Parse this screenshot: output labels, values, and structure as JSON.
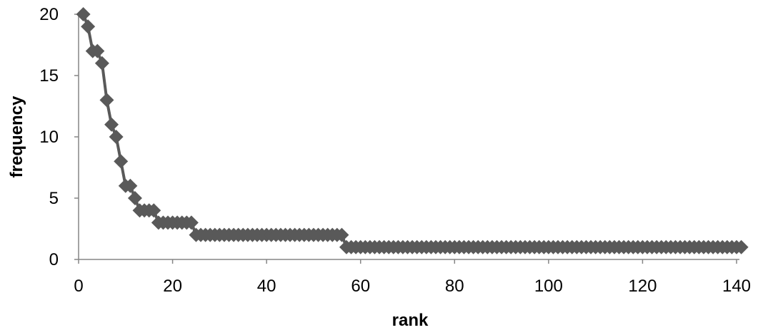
{
  "chart_data": {
    "type": "line",
    "title": "",
    "xlabel": "rank",
    "ylabel": "frequency",
    "xlim": [
      0,
      140
    ],
    "ylim": [
      0,
      20
    ],
    "xticks": [
      "0",
      "20",
      "40",
      "60",
      "80",
      "100",
      "120",
      "140"
    ],
    "yticks": [
      "0",
      "5",
      "10",
      "15",
      "20"
    ],
    "grid": false,
    "legend": "none",
    "marker": "diamond",
    "color": "#595959",
    "series": [
      {
        "values": [
          [
            1,
            20
          ],
          [
            2,
            19
          ],
          [
            3,
            17
          ],
          [
            4,
            17
          ],
          [
            5,
            16
          ],
          [
            6,
            13
          ],
          [
            7,
            11
          ],
          [
            8,
            10
          ],
          [
            9,
            8
          ],
          [
            10,
            6
          ],
          [
            11,
            6
          ],
          [
            12,
            5
          ],
          [
            13,
            4
          ],
          [
            14,
            4
          ],
          [
            15,
            4
          ],
          [
            16,
            4
          ],
          [
            17,
            3
          ],
          [
            18,
            3
          ],
          [
            19,
            3
          ],
          [
            20,
            3
          ],
          [
            21,
            3
          ],
          [
            22,
            3
          ],
          [
            23,
            3
          ],
          [
            24,
            3
          ],
          [
            25,
            2
          ],
          [
            26,
            2
          ],
          [
            27,
            2
          ],
          [
            28,
            2
          ],
          [
            29,
            2
          ],
          [
            30,
            2
          ],
          [
            31,
            2
          ],
          [
            32,
            2
          ],
          [
            33,
            2
          ],
          [
            34,
            2
          ],
          [
            35,
            2
          ],
          [
            36,
            2
          ],
          [
            37,
            2
          ],
          [
            38,
            2
          ],
          [
            39,
            2
          ],
          [
            40,
            2
          ],
          [
            41,
            2
          ],
          [
            42,
            2
          ],
          [
            43,
            2
          ],
          [
            44,
            2
          ],
          [
            45,
            2
          ],
          [
            46,
            2
          ],
          [
            47,
            2
          ],
          [
            48,
            2
          ],
          [
            49,
            2
          ],
          [
            50,
            2
          ],
          [
            51,
            2
          ],
          [
            52,
            2
          ],
          [
            53,
            2
          ],
          [
            54,
            2
          ],
          [
            55,
            2
          ],
          [
            56,
            2
          ],
          [
            57,
            1
          ],
          [
            58,
            1
          ],
          [
            59,
            1
          ],
          [
            60,
            1
          ],
          [
            61,
            1
          ],
          [
            62,
            1
          ],
          [
            63,
            1
          ],
          [
            64,
            1
          ],
          [
            65,
            1
          ],
          [
            66,
            1
          ],
          [
            67,
            1
          ],
          [
            68,
            1
          ],
          [
            69,
            1
          ],
          [
            70,
            1
          ],
          [
            71,
            1
          ],
          [
            72,
            1
          ],
          [
            73,
            1
          ],
          [
            74,
            1
          ],
          [
            75,
            1
          ],
          [
            76,
            1
          ],
          [
            77,
            1
          ],
          [
            78,
            1
          ],
          [
            79,
            1
          ],
          [
            80,
            1
          ],
          [
            81,
            1
          ],
          [
            82,
            1
          ],
          [
            83,
            1
          ],
          [
            84,
            1
          ],
          [
            85,
            1
          ],
          [
            86,
            1
          ],
          [
            87,
            1
          ],
          [
            88,
            1
          ],
          [
            89,
            1
          ],
          [
            90,
            1
          ],
          [
            91,
            1
          ],
          [
            92,
            1
          ],
          [
            93,
            1
          ],
          [
            94,
            1
          ],
          [
            95,
            1
          ],
          [
            96,
            1
          ],
          [
            97,
            1
          ],
          [
            98,
            1
          ],
          [
            99,
            1
          ],
          [
            100,
            1
          ],
          [
            101,
            1
          ],
          [
            102,
            1
          ],
          [
            103,
            1
          ],
          [
            104,
            1
          ],
          [
            105,
            1
          ],
          [
            106,
            1
          ],
          [
            107,
            1
          ],
          [
            108,
            1
          ],
          [
            109,
            1
          ],
          [
            110,
            1
          ],
          [
            111,
            1
          ],
          [
            112,
            1
          ],
          [
            113,
            1
          ],
          [
            114,
            1
          ],
          [
            115,
            1
          ],
          [
            116,
            1
          ],
          [
            117,
            1
          ],
          [
            118,
            1
          ],
          [
            119,
            1
          ],
          [
            120,
            1
          ],
          [
            121,
            1
          ],
          [
            122,
            1
          ],
          [
            123,
            1
          ],
          [
            124,
            1
          ],
          [
            125,
            1
          ],
          [
            126,
            1
          ],
          [
            127,
            1
          ],
          [
            128,
            1
          ],
          [
            129,
            1
          ],
          [
            130,
            1
          ],
          [
            131,
            1
          ],
          [
            132,
            1
          ],
          [
            133,
            1
          ],
          [
            134,
            1
          ],
          [
            135,
            1
          ],
          [
            136,
            1
          ],
          [
            137,
            1
          ],
          [
            138,
            1
          ],
          [
            139,
            1
          ],
          [
            140,
            1
          ],
          [
            141,
            1
          ]
        ]
      }
    ]
  }
}
